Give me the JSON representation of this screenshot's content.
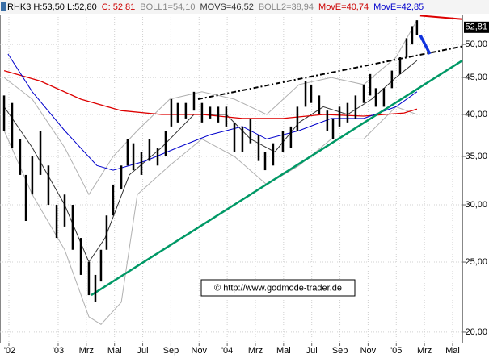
{
  "chart_data": {
    "type": "ohlc",
    "header": [
      {
        "text": "RHK3 H:53,50 L:52,80",
        "color": "#000000"
      },
      {
        "text": "C: 52,81",
        "color": "#cc0000"
      },
      {
        "text": "BOLL1=54,10",
        "color": "#888888"
      },
      {
        "text": "MOVS=46,52",
        "color": "#333333"
      },
      {
        "text": "BOLL2=38,94",
        "color": "#888888"
      },
      {
        "text": "MovE=40,74",
        "color": "#cc0000"
      },
      {
        "text": "MovE=42,85",
        "color": "#0000cc"
      }
    ],
    "last_price": {
      "value": 52.81,
      "label": "52,81"
    },
    "watermark": "© http://www.godmode-trader.de",
    "log_y": true,
    "grid": true,
    "bar_color": "#000000",
    "x": [
      -3.84,
      -3.27,
      -2.7,
      -2.29,
      -1.84,
      -1.26,
      -0.69,
      -0.11,
      0.46,
      1.03,
      1.61,
      2.18,
      2.64,
      3.04,
      3.44,
      3.9,
      4.48,
      4.93,
      5.34,
      5.91,
      6.48,
      7.06,
      7.63,
      8.03,
      8.49,
      9.06,
      9.64,
      10.21,
      10.79,
      11.36,
      11.93,
      12.51,
      13.08,
      13.65,
      14.23,
      14.69,
      15.26,
      15.95,
      16.52,
      16.98,
      17.56,
      17.96,
      18.53,
      19.1,
      19.51,
      19.97,
      20.54,
      21.11,
      21.69,
      22.15,
      22.55,
      23.12,
      23.69,
      24.27,
      24.73,
      25.13,
      25.47
    ],
    "high": [
      42.5,
      41.5,
      37,
      33,
      35,
      38,
      34,
      30,
      31,
      30,
      27,
      25,
      24,
      26,
      29,
      32,
      34,
      37,
      36.5,
      35.5,
      37,
      36,
      38,
      42,
      41.5,
      41.5,
      43,
      41.5,
      41,
      41,
      41,
      39,
      38.5,
      39.5,
      37.5,
      35.5,
      36.5,
      38,
      38.5,
      41,
      44.5,
      44,
      42.5,
      40.5,
      39.5,
      41,
      41.5,
      42.5,
      44,
      45.5,
      43.5,
      43.5,
      46,
      48,
      51,
      53,
      54
    ],
    "low": [
      38,
      36,
      33,
      28.5,
      31,
      33,
      30,
      27,
      28,
      26,
      24,
      22.5,
      22,
      23.5,
      26,
      29,
      31.5,
      34,
      33.5,
      33,
      34.5,
      34,
      35,
      38.5,
      39,
      39.5,
      40.5,
      39,
      39.5,
      39,
      38.5,
      35.5,
      35.5,
      36.5,
      34.5,
      33.5,
      34,
      35.5,
      36,
      38,
      41,
      41.5,
      40,
      38,
      37,
      38.5,
      39,
      39.5,
      41.5,
      42.5,
      41,
      41,
      43.5,
      45.5,
      48,
      50,
      51.5
    ],
    "overlays": [
      {
        "color": "#b0b0b0",
        "width": 1,
        "x": [
          -3.84,
          -1.84,
          0.46,
          2.18,
          3.9,
          5.62,
          7.92,
          10.21,
          12.51,
          14.8,
          17.1,
          19.39,
          21.69,
          23.98,
          25.47
        ],
        "values": [
          45,
          42,
          36,
          31,
          35,
          38,
          42,
          43,
          42,
          40,
          44,
          45,
          44,
          48,
          54
        ]
      },
      {
        "color": "#b0b0b0",
        "width": 1,
        "x": [
          -3.84,
          -1.84,
          0.46,
          2.18,
          3.04,
          4.48,
          5.62,
          7.92,
          10.21,
          12.51,
          14.8,
          17.1,
          19.39,
          21.69,
          23.98,
          25.47
        ],
        "values": [
          38,
          31,
          26,
          21,
          20.5,
          22,
          31,
          34,
          37,
          35,
          32,
          34,
          37,
          37,
          41,
          40
        ]
      },
      {
        "color": "#333333",
        "width": 1,
        "x": [
          -3.84,
          -1.84,
          0.46,
          2.18,
          3.33,
          5.05,
          7.34,
          9.64,
          11.93,
          13.65,
          15.38,
          17.1,
          18.82,
          20.54,
          22.26,
          23.98,
          25.47
        ],
        "values": [
          41,
          36,
          30,
          25,
          27,
          33,
          36,
          40,
          40,
          37,
          35.5,
          39,
          41,
          40,
          42,
          45,
          47.5
        ]
      },
      {
        "color": "#dd0000",
        "width": 1.3,
        "x": [
          -3.84,
          -1.26,
          1.61,
          4.48,
          7.34,
          10.21,
          13.08,
          15.95,
          18.82,
          21.69,
          24.56,
          25.47
        ],
        "values": [
          46,
          44.5,
          42,
          40.5,
          40,
          40,
          39.5,
          39.5,
          40,
          39.8,
          40.2,
          40.7
        ]
      },
      {
        "color": "#0000cc",
        "width": 1,
        "x": [
          -3.56,
          -1.84,
          0.46,
          2.75,
          3.9,
          6.2,
          8.49,
          10.79,
          13.08,
          14.8,
          17.1,
          19.39,
          21.69,
          23.98,
          25.47
        ],
        "values": [
          48.5,
          43,
          38,
          34,
          33.5,
          34.5,
          36,
          37.5,
          38.5,
          37,
          38,
          39.5,
          39.5,
          41,
          43
        ]
      },
      {
        "color": "#009966",
        "width": 2.5,
        "x": [
          2.35,
          28.69
        ],
        "values": [
          22.5,
          47.5
        ]
      },
      {
        "color": "#000000",
        "width": 2,
        "dash": "6 3 2 3",
        "x": [
          9.93,
          28.69
        ],
        "values": [
          42,
          49.7
        ]
      },
      {
        "color": "#dd0000",
        "width": 2,
        "x": [
          25.7,
          28.69
        ],
        "values": [
          54.8,
          54.2
        ]
      },
      {
        "color": "#1133dd",
        "width": 3.5,
        "x": [
          25.7,
          26.39
        ],
        "values": [
          51.5,
          48.5
        ]
      }
    ],
    "xlim": [
      -4.13,
      28.69
    ],
    "ylim": [
      19.34,
      55.0
    ],
    "yticks": [
      {
        "value": 20,
        "label": "20,00"
      },
      {
        "value": 25,
        "label": "25,00"
      },
      {
        "value": 30,
        "label": "30,00"
      },
      {
        "value": 35,
        "label": "35,00"
      },
      {
        "value": 40,
        "label": "40,00"
      },
      {
        "value": 45,
        "label": "45,00"
      },
      {
        "value": 50,
        "label": "50,00"
      }
    ],
    "xticks": [
      {
        "value": -3.5,
        "label": "'02"
      },
      {
        "value": 0,
        "label": "'03"
      },
      {
        "value": 2,
        "label": "Mrz"
      },
      {
        "value": 4,
        "label": "Mai"
      },
      {
        "value": 6,
        "label": "Jul"
      },
      {
        "value": 8,
        "label": "Sep"
      },
      {
        "value": 10,
        "label": "Nov"
      },
      {
        "value": 12,
        "label": "'04"
      },
      {
        "value": 14,
        "label": "Mrz"
      },
      {
        "value": 16,
        "label": "Mai"
      },
      {
        "value": 18,
        "label": "Jul"
      },
      {
        "value": 20,
        "label": "Sep"
      },
      {
        "value": 22,
        "label": "Nov"
      },
      {
        "value": 24,
        "label": "'05"
      },
      {
        "value": 26,
        "label": "Mrz"
      },
      {
        "value": 28,
        "label": "Mai"
      }
    ]
  }
}
